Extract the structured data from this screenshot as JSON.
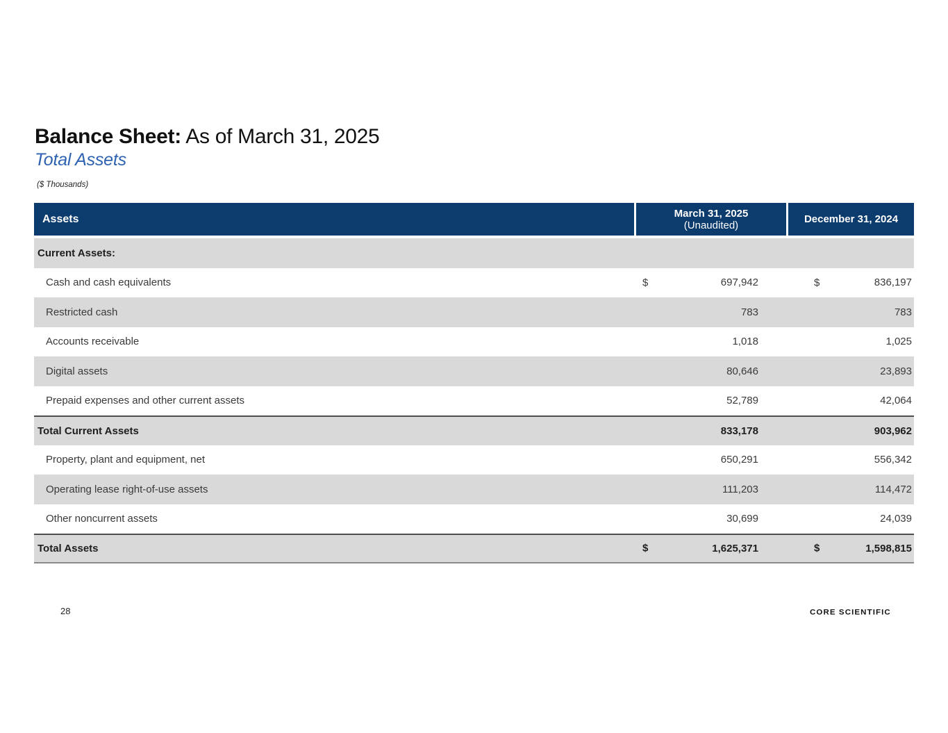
{
  "page": {
    "title_bold": "Balance Sheet:",
    "title_rest": " As of March 31, 2025",
    "subtitle": "Total Assets",
    "units_note": "($ Thousands)",
    "page_number": "28",
    "logo_text": "CORE SCIENTIFIC"
  },
  "colors": {
    "header_navy": "#0C3B6D",
    "row_gray": "#D9D9D9",
    "subtitle_blue": "#2E62B1"
  },
  "table": {
    "header": {
      "col_assets": "Assets",
      "col_march_line1": "March 31, 2025",
      "col_march_line2": "(Unaudited)",
      "col_december": "December 31, 2024"
    },
    "rows": [
      {
        "label": "Current Assets:"
      },
      {
        "label": "Cash and cash equivalents",
        "dollar1": "$",
        "value1": "697,942",
        "dollar2": "$",
        "value2": "836,197"
      },
      {
        "label": "Restricted cash",
        "value1": "783",
        "value2": "783"
      },
      {
        "label": "Accounts receivable",
        "value1": "1,018",
        "value2": "1,025"
      },
      {
        "label": "Digital assets",
        "value1": "80,646",
        "value2": "23,893"
      },
      {
        "label": "Prepaid expenses and other current assets",
        "value1": "52,789",
        "value2": "42,064"
      },
      {
        "label": "Total Current Assets",
        "value1": "833,178",
        "value2": "903,962"
      },
      {
        "label": "Property, plant and equipment, net",
        "value1": "650,291",
        "value2": "556,342"
      },
      {
        "label": "Operating lease right-of-use assets",
        "value1": "111,203",
        "value2": "114,472"
      },
      {
        "label": "Other noncurrent assets",
        "value1": "30,699",
        "value2": "24,039"
      },
      {
        "label": "Total Assets",
        "dollar1": "$",
        "value1": "1,625,371",
        "dollar2": "$",
        "value2": "1,598,815"
      }
    ]
  }
}
